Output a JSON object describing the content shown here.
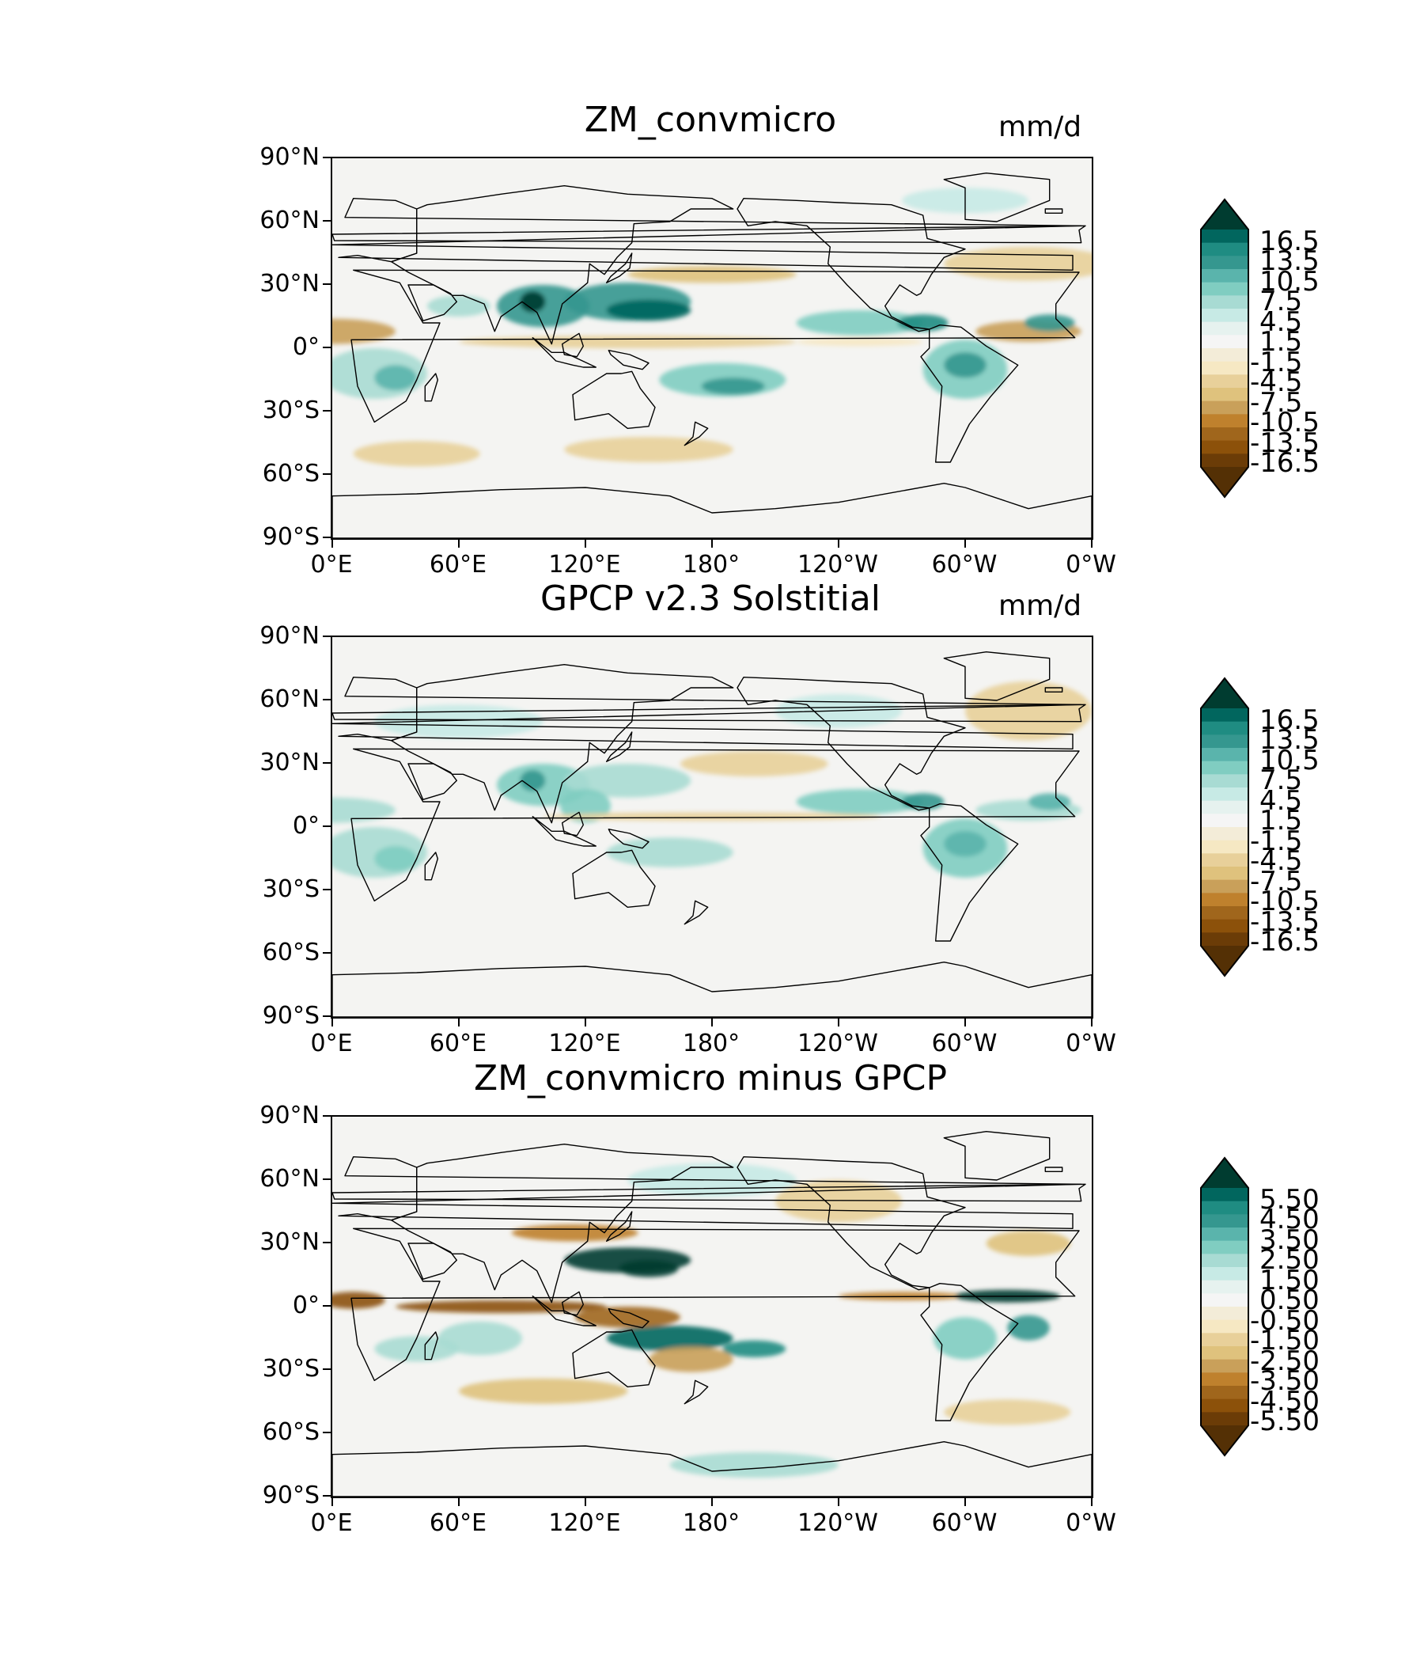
{
  "panels": [
    {
      "title": "ZM_convmicro",
      "units": "mm/d",
      "lat_labels": [
        "90°N",
        "60°N",
        "30°N",
        "0°",
        "30°S",
        "60°S",
        "90°S"
      ],
      "lon_labels": [
        "0°E",
        "60°E",
        "120°E",
        "180°",
        "120°W",
        "60°W",
        "0°W"
      ],
      "colorbar_labels": [
        "16.5",
        "13.5",
        "10.5",
        "7.5",
        "4.5",
        "1.5",
        "-1.5",
        "-4.5",
        "-7.5",
        "-10.5",
        "-13.5",
        "-16.5"
      ]
    },
    {
      "title": "GPCP v2.3 Solstitial",
      "units": "mm/d",
      "lat_labels": [
        "90°N",
        "60°N",
        "30°N",
        "0°",
        "30°S",
        "60°S",
        "90°S"
      ],
      "lon_labels": [
        "0°E",
        "60°E",
        "120°E",
        "180°",
        "120°W",
        "60°W",
        "0°W"
      ],
      "colorbar_labels": [
        "16.5",
        "13.5",
        "10.5",
        "7.5",
        "4.5",
        "1.5",
        "-1.5",
        "-4.5",
        "-7.5",
        "-10.5",
        "-13.5",
        "-16.5"
      ]
    },
    {
      "title": "ZM_convmicro minus GPCP",
      "units": "",
      "lat_labels": [
        "90°N",
        "60°N",
        "30°N",
        "0°",
        "30°S",
        "60°S",
        "90°S"
      ],
      "lon_labels": [
        "0°E",
        "60°E",
        "120°E",
        "180°",
        "120°W",
        "60°W",
        "0°W"
      ],
      "colorbar_labels": [
        "5.50",
        "4.50",
        "3.50",
        "2.50",
        "1.50",
        "0.50",
        "-0.50",
        "-1.50",
        "-2.50",
        "-3.50",
        "-4.50",
        "-5.50"
      ]
    }
  ],
  "colors": {
    "map_background": "#f4f4f2",
    "coastline": "#000000",
    "colorbar": [
      "#003c30",
      "#01665e",
      "#1f8c82",
      "#35978f",
      "#5ab4ac",
      "#80cdc1",
      "#a8dbd3",
      "#c7eae5",
      "#e6f2ef",
      "#f5f5f5",
      "#f3ecd8",
      "#f6e8c3",
      "#e8d09a",
      "#dfc27d",
      "#c9a05a",
      "#bf812d",
      "#a0661c",
      "#8c510a",
      "#6b3c07",
      "#543005"
    ]
  }
}
